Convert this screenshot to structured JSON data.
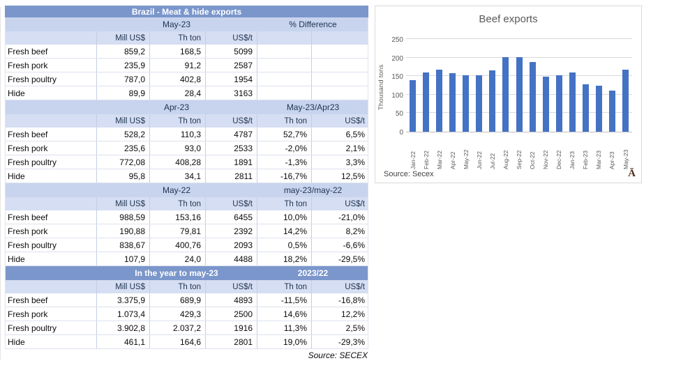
{
  "table": {
    "title": "Brazil - Meat & hide exports",
    "source": "Source: SECEX",
    "sections": [
      {
        "period": "May-23",
        "compare": "% Difference",
        "highlight": false,
        "subheaders": [
          "Mill US$",
          "Th ton",
          "US$/t",
          "",
          ""
        ],
        "rows": [
          [
            "Fresh beef",
            "859,2",
            "168,5",
            "5099",
            "",
            ""
          ],
          [
            "Fresh pork",
            "235,9",
            "91,2",
            "2587",
            "",
            ""
          ],
          [
            "Fresh poultry",
            "787,0",
            "402,8",
            "1954",
            "",
            ""
          ],
          [
            "Hide",
            "89,9",
            "28,4",
            "3163",
            "",
            ""
          ]
        ]
      },
      {
        "period": "Apr-23",
        "compare": "May-23/Apr23",
        "highlight": false,
        "subheaders": [
          "Mill US$",
          "Th ton",
          "US$/t",
          "Th ton",
          "US$/t"
        ],
        "rows": [
          [
            "Fresh beef",
            "528,2",
            "110,3",
            "4787",
            "52,7%",
            "6,5%"
          ],
          [
            "Fresh pork",
            "235,6",
            "93,0",
            "2533",
            "-2,0%",
            "2,1%"
          ],
          [
            "Fresh poultry",
            "772,08",
            "408,28",
            "1891",
            "-1,3%",
            "3,3%"
          ],
          [
            "Hide",
            "95,8",
            "34,1",
            "2811",
            "-16,7%",
            "12,5%"
          ]
        ]
      },
      {
        "period": "May-22",
        "compare": "may-23/may-22",
        "highlight": false,
        "subheaders": [
          "Mill US$",
          "Th ton",
          "US$/t",
          "Th ton",
          "US$/t"
        ],
        "rows": [
          [
            "Fresh beef",
            "988,59",
            "153,16",
            "6455",
            "10,0%",
            "-21,0%"
          ],
          [
            "Fresh pork",
            "190,88",
            "79,81",
            "2392",
            "14,2%",
            "8,2%"
          ],
          [
            "Fresh poultry",
            "838,67",
            "400,76",
            "2093",
            "0,5%",
            "-6,6%"
          ],
          [
            "Hide",
            "107,9",
            "24,0",
            "4488",
            "18,2%",
            "-29,5%"
          ]
        ]
      },
      {
        "period": "In the year to may-23",
        "compare": "2023/22",
        "highlight": true,
        "subheaders": [
          "Mill US$",
          "Th ton",
          "US$/t",
          "Th ton",
          "US$/t"
        ],
        "rows": [
          [
            "Fresh beef",
            "3.375,9",
            "689,9",
            "4893",
            "-11,5%",
            "-16,8%"
          ],
          [
            "Fresh pork",
            "1.073,4",
            "429,3",
            "2500",
            "14,6%",
            "12,2%"
          ],
          [
            "Fresh poultry",
            "3.902,8",
            "2.037,2",
            "1916",
            "11,3%",
            "2,5%"
          ],
          [
            "Hide",
            "461,1",
            "164,6",
            "2801",
            "19,0%",
            "-29,3%"
          ]
        ]
      }
    ]
  },
  "chart": {
    "title": "Beef exports",
    "ylabel": "Thousand tons",
    "source": "Source: Secex",
    "stray_char": "Ā"
  },
  "chart_data": {
    "type": "bar",
    "title": "Beef exports",
    "ylabel": "Thousand tons",
    "xlabel": "",
    "categories": [
      "Jan-22",
      "Feb-22",
      "Mar-22",
      "Apr-22",
      "May-22",
      "Jun-22",
      "Jul-22",
      "Aug-22",
      "Sep-22",
      "Oct-22",
      "Nov-22",
      "Dec-22",
      "Jan-23",
      "Feb-23",
      "Mar-23",
      "Apr-23",
      "May-23"
    ],
    "values": [
      140,
      159,
      167,
      157,
      153,
      152,
      166,
      202,
      202,
      188,
      148,
      152,
      159,
      127,
      125,
      110,
      168
    ],
    "ylim": [
      0,
      250
    ],
    "yticks": [
      0,
      50,
      100,
      150,
      200,
      250
    ],
    "grid": true,
    "legend": false,
    "bar_color": "#4472C4"
  },
  "colors": {
    "band_dark": "#7B96CB",
    "band_light": "#C8D4EE",
    "subheader": "#D5DEF2",
    "band_text": "#1F3250",
    "bar": "#4472C4",
    "axis_text": "#595959",
    "gridline": "#D9D9D9",
    "stray_char": "#4E2B16"
  }
}
